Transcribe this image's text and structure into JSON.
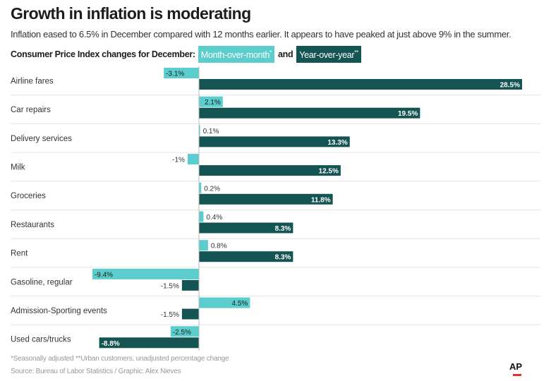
{
  "header": {
    "title": "Growth in inflation is moderating",
    "subtitle": "Inflation eased to 6.5% in December compared with 12 months earlier. It appears to have peaked at just above 9% in the summer."
  },
  "legend": {
    "label": "Consumer Price Index changes for December:",
    "mom_label": "Month-over-month",
    "mom_mark": "*",
    "and_text": "and",
    "yoy_label": "Year-over-year",
    "yoy_mark": "**"
  },
  "colors": {
    "mom": "#5bcdcd",
    "yoy": "#145452",
    "divider": "#e5e5e5",
    "axis": "#bbbbbb"
  },
  "chart_data": {
    "type": "bar",
    "orientation": "horizontal",
    "categories": [
      "Airline fares",
      "Car repairs",
      "Delivery services",
      "Milk",
      "Groceries",
      "Restaurants",
      "Rent",
      "Gasoline, regular",
      "Admission-Sporting events",
      "Used cars/trucks"
    ],
    "series": [
      {
        "name": "Month-over-month*",
        "values": [
          -3.1,
          2.1,
          0.1,
          -1,
          0.2,
          0.4,
          0.8,
          -9.4,
          4.5,
          -2.5
        ],
        "labels": [
          "-3.1%",
          "2.1%",
          "0.1%",
          "-1%",
          "0.2%",
          "0.4%",
          "0.8%",
          "-9.4%",
          "4.5%",
          "-2.5%"
        ]
      },
      {
        "name": "Year-over-year**",
        "values": [
          28.5,
          19.5,
          13.3,
          12.5,
          11.8,
          8.3,
          8.3,
          -1.5,
          -1.5,
          -8.8
        ],
        "labels": [
          "28.5%",
          "19.5%",
          "13.3%",
          "12.5%",
          "11.8%",
          "8.3%",
          "8.3%",
          "-1.5%",
          "-1.5%",
          "-8.8%"
        ]
      }
    ],
    "unit": "%"
  },
  "footer": {
    "notes": "*Seasonally adjusted **Urban customers, unadjusted percentage change",
    "source": "Source: Bureau of Labor Statistics / Graphic: Alex Nieves",
    "logo": "AP"
  }
}
